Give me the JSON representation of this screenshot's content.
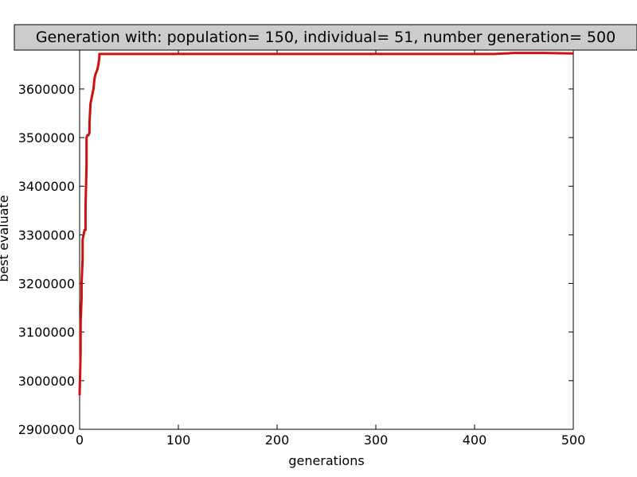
{
  "chart_data": {
    "type": "line",
    "title": "Generation with: population= 150, individual= 51, number generation= 500",
    "xlabel": "generations",
    "ylabel": "best evaluate",
    "xlim": [
      0,
      500
    ],
    "ylim": [
      2900000,
      3680000
    ],
    "x_ticks": [
      0,
      100,
      200,
      300,
      400,
      500
    ],
    "y_ticks": [
      2900000,
      3000000,
      3100000,
      3200000,
      3300000,
      3400000,
      3500000,
      3600000
    ],
    "grid": false,
    "legend": "none",
    "series": [
      {
        "color": "#cc1111",
        "points": [
          [
            0,
            2970000
          ],
          [
            1,
            3060000
          ],
          [
            1,
            3120000
          ],
          [
            2,
            3170000
          ],
          [
            2,
            3200000
          ],
          [
            3,
            3250000
          ],
          [
            3,
            3290000
          ],
          [
            4,
            3300000
          ],
          [
            5,
            3310000
          ],
          [
            6,
            3310000
          ],
          [
            6,
            3360000
          ],
          [
            7,
            3440000
          ],
          [
            7,
            3500000
          ],
          [
            8,
            3505000
          ],
          [
            9,
            3505000
          ],
          [
            10,
            3510000
          ],
          [
            10,
            3530000
          ],
          [
            11,
            3570000
          ],
          [
            12,
            3580000
          ],
          [
            13,
            3590000
          ],
          [
            14,
            3600000
          ],
          [
            15,
            3620000
          ],
          [
            16,
            3630000
          ],
          [
            17,
            3635000
          ],
          [
            18,
            3640000
          ],
          [
            19,
            3650000
          ],
          [
            20,
            3665000
          ],
          [
            20,
            3672000
          ],
          [
            50,
            3672000
          ],
          [
            100,
            3672000
          ],
          [
            200,
            3672000
          ],
          [
            300,
            3672000
          ],
          [
            400,
            3672000
          ],
          [
            420,
            3672000
          ],
          [
            440,
            3674000
          ],
          [
            470,
            3674000
          ],
          [
            500,
            3673000
          ]
        ]
      }
    ]
  },
  "style": {
    "line_color": "#cc1111",
    "title_box_fill": "#cccccc"
  }
}
